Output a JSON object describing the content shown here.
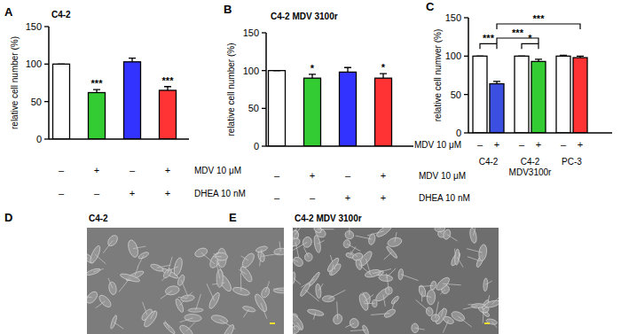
{
  "chart_data": [
    {
      "type": "bar",
      "title": "A",
      "subtitle": "C4-2",
      "y_label": "relative cell number (%)",
      "categories": [
        null,
        null,
        null,
        null
      ],
      "values": [
        100,
        62,
        103,
        65
      ],
      "errors": [
        0,
        4,
        5,
        5
      ],
      "colors": [
        "#ffffff",
        "#33cc33",
        "#3333ff",
        "#ff3333"
      ],
      "significance": [
        null,
        "***",
        null,
        "***"
      ],
      "ylim": [
        0,
        150
      ],
      "yticks": [
        0,
        50,
        100,
        150
      ],
      "treatments": [
        {
          "label": "MDV 10 μM",
          "signs": [
            "–",
            "+",
            "–",
            "+"
          ]
        },
        {
          "label": "DHEA 10 nM",
          "signs": [
            "–",
            "–",
            "+",
            "+"
          ]
        }
      ]
    },
    {
      "type": "bar",
      "title": "B",
      "subtitle": "C4-2 MDV 3100r",
      "y_label": "relative cell number (%)",
      "categories": [
        null,
        null,
        null,
        null
      ],
      "values": [
        100,
        90,
        98,
        90
      ],
      "errors": [
        0,
        5,
        6,
        6
      ],
      "colors": [
        "#ffffff",
        "#33cc33",
        "#3333ff",
        "#ff3333"
      ],
      "significance": [
        null,
        "*",
        null,
        "*"
      ],
      "ylim": [
        0,
        150
      ],
      "yticks": [
        0,
        50,
        100,
        150
      ],
      "treatments": [
        {
          "label": "MDV 10 μM",
          "signs": [
            "–",
            "+",
            "–",
            "+"
          ]
        },
        {
          "label": "DHEA 10 nM",
          "signs": [
            "–",
            "–",
            "+",
            "+"
          ]
        }
      ]
    },
    {
      "type": "bar",
      "title": "C",
      "y_label": "relative cell numver (%)",
      "categories": [
        null,
        null,
        null,
        null,
        null,
        null
      ],
      "values": [
        100,
        64,
        100,
        93,
        100,
        98
      ],
      "errors": [
        0,
        3,
        0,
        3,
        1,
        2
      ],
      "colors": [
        "#ffffff",
        "#3b4fe0",
        "#ffffff",
        "#33cc33",
        "#ffffff",
        "#ff3333"
      ],
      "ylim": [
        0,
        150
      ],
      "yticks": [
        0,
        50,
        100,
        150
      ],
      "treatments": [
        {
          "label": "MDV 10 μM",
          "signs": [
            "–",
            "+",
            "–",
            "+",
            "–",
            "+"
          ]
        }
      ],
      "groups": [
        {
          "label": [
            "C4-2"
          ],
          "start": 0,
          "end": 1
        },
        {
          "label": [
            "C4-2",
            "MDV3100r"
          ],
          "start": 2,
          "end": 3
        },
        {
          "label": [
            "PC-3"
          ],
          "start": 4,
          "end": 5
        }
      ],
      "comparisons": [
        {
          "from": 0,
          "to": 1,
          "label": "***"
        },
        {
          "from": 2,
          "to": 3,
          "label": "*"
        },
        {
          "from": 1,
          "to": 3,
          "label": "***"
        },
        {
          "from": 1,
          "to": 5,
          "label": "***"
        }
      ]
    }
  ],
  "images": [
    {
      "title": "D",
      "label": "C4-2"
    },
    {
      "title": "E",
      "label": "C4-2 MDV 3100r"
    }
  ]
}
